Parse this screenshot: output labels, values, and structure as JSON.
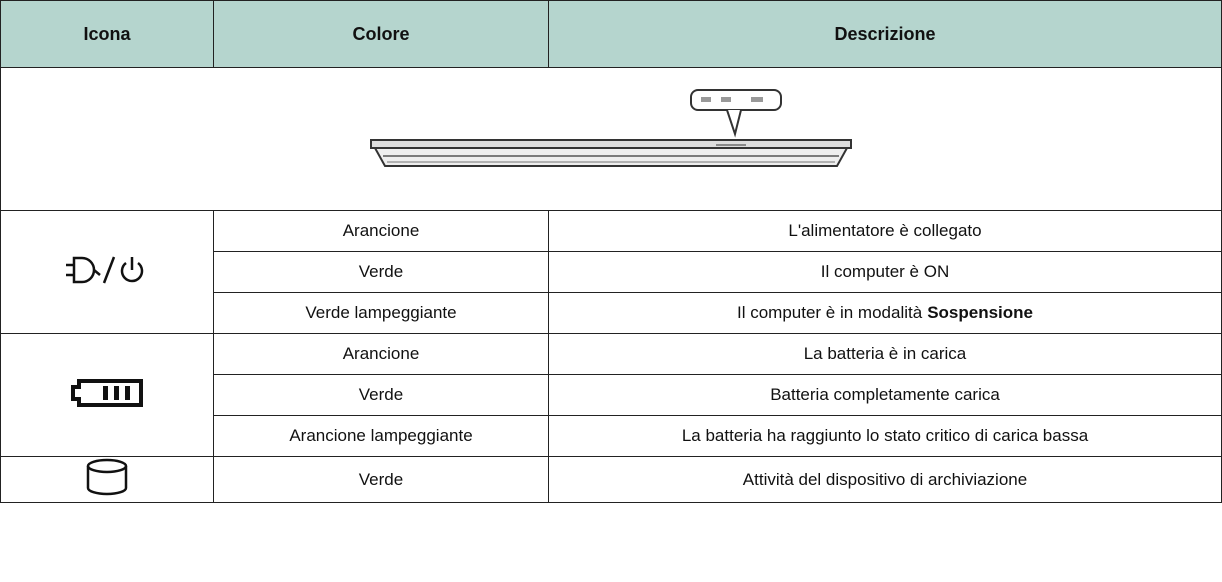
{
  "table": {
    "headers": [
      "Icona",
      "Colore",
      "Descrizione"
    ],
    "groups": [
      {
        "icon": "power",
        "rows": [
          {
            "color": "Arancione",
            "description": [
              {
                "text": "L'alimentatore è collegato"
              }
            ]
          },
          {
            "color": "Verde",
            "description": [
              {
                "text": "Il computer è ON"
              }
            ]
          },
          {
            "color": "Verde lampeggiante",
            "description": [
              {
                "text": "Il computer è in modalità"
              },
              {
                "text": "Sospensione",
                "bold": true
              }
            ]
          }
        ]
      },
      {
        "icon": "battery",
        "rows": [
          {
            "color": "Arancione",
            "description": [
              {
                "text": "La batteria è in carica"
              }
            ]
          },
          {
            "color": "Verde",
            "description": [
              {
                "text": "Batteria completamente carica"
              }
            ]
          },
          {
            "color": "Arancione lampeggiante",
            "description": [
              {
                "text": "La batteria ha raggiunto lo stato critico di carica bassa"
              }
            ]
          }
        ]
      },
      {
        "icon": "storage",
        "rows": [
          {
            "color": "Verde",
            "description": [
              {
                "text": "Attività del dispositivo di archiviazione"
              }
            ]
          }
        ]
      }
    ]
  }
}
